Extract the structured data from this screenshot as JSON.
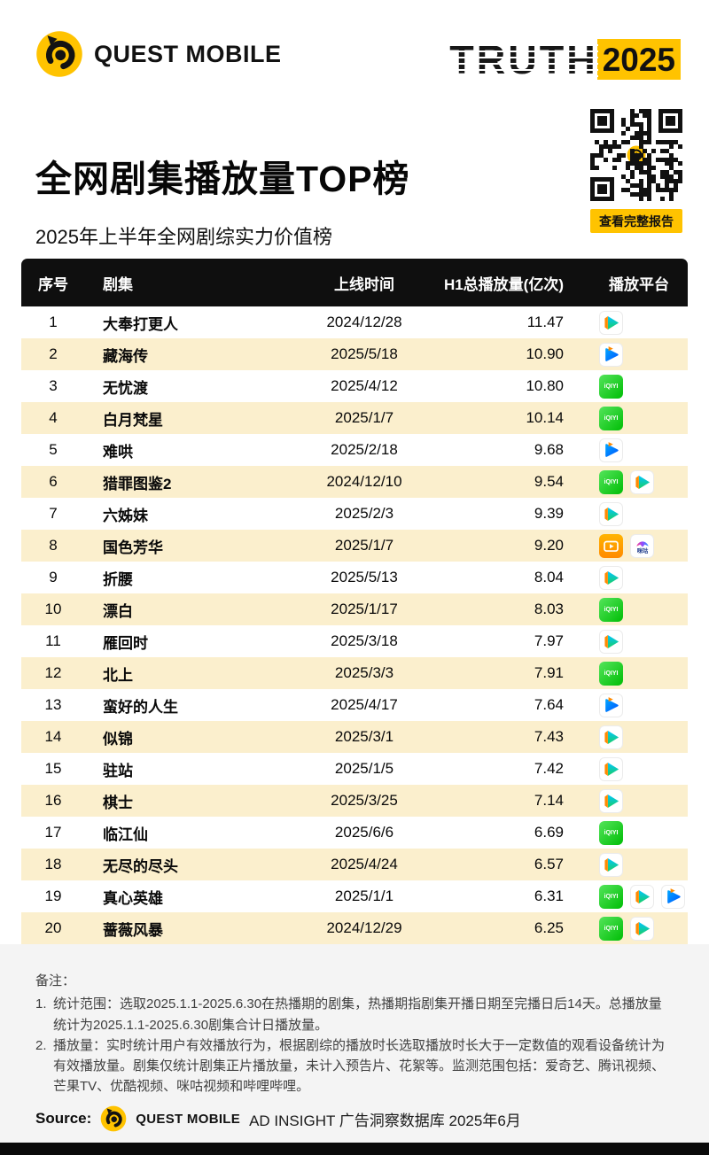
{
  "brand": {
    "name": "QUEST MOBILE",
    "truth": "TRUTH",
    "truth_year": "2025"
  },
  "header": {
    "title": "全网剧集播放量TOP榜",
    "subtitle": "2025年上半年全网剧综实力价值榜",
    "qr_button_label": "查看完整报告"
  },
  "table": {
    "columns": [
      "序号",
      "剧集",
      "上线时间",
      "H1总播放量(亿次)",
      "播放平台"
    ],
    "platform_labels": {
      "iqiyi": "iQIYI",
      "migu-video": "咪咕"
    },
    "rows": [
      {
        "rank": "1",
        "title": "大奉打更人",
        "date": "2024/12/28",
        "plays": "11.47",
        "platforms": [
          "tencent-video"
        ]
      },
      {
        "rank": "2",
        "title": "藏海传",
        "date": "2025/5/18",
        "plays": "10.90",
        "platforms": [
          "youku"
        ]
      },
      {
        "rank": "3",
        "title": "无忧渡",
        "date": "2025/4/12",
        "plays": "10.80",
        "platforms": [
          "iqiyi"
        ]
      },
      {
        "rank": "4",
        "title": "白月梵星",
        "date": "2025/1/7",
        "plays": "10.14",
        "platforms": [
          "iqiyi"
        ]
      },
      {
        "rank": "5",
        "title": "难哄",
        "date": "2025/2/18",
        "plays": "9.68",
        "platforms": [
          "youku"
        ]
      },
      {
        "rank": "6",
        "title": "猎罪图鉴2",
        "date": "2024/12/10",
        "plays": "9.54",
        "platforms": [
          "iqiyi",
          "tencent-video"
        ]
      },
      {
        "rank": "7",
        "title": "六姊妹",
        "date": "2025/2/3",
        "plays": "9.39",
        "platforms": [
          "tencent-video"
        ]
      },
      {
        "rank": "8",
        "title": "国色芳华",
        "date": "2025/1/7",
        "plays": "9.20",
        "platforms": [
          "mango-tv",
          "migu-video"
        ]
      },
      {
        "rank": "9",
        "title": "折腰",
        "date": "2025/5/13",
        "plays": "8.04",
        "platforms": [
          "tencent-video"
        ]
      },
      {
        "rank": "10",
        "title": "漂白",
        "date": "2025/1/17",
        "plays": "8.03",
        "platforms": [
          "iqiyi"
        ]
      },
      {
        "rank": "11",
        "title": "雁回时",
        "date": "2025/3/18",
        "plays": "7.97",
        "platforms": [
          "tencent-video"
        ]
      },
      {
        "rank": "12",
        "title": "北上",
        "date": "2025/3/3",
        "plays": "7.91",
        "platforms": [
          "iqiyi"
        ]
      },
      {
        "rank": "13",
        "title": "蛮好的人生",
        "date": "2025/4/17",
        "plays": "7.64",
        "platforms": [
          "youku"
        ]
      },
      {
        "rank": "14",
        "title": "似锦",
        "date": "2025/3/1",
        "plays": "7.43",
        "platforms": [
          "tencent-video"
        ]
      },
      {
        "rank": "15",
        "title": "驻站",
        "date": "2025/1/5",
        "plays": "7.42",
        "platforms": [
          "tencent-video"
        ]
      },
      {
        "rank": "16",
        "title": "棋士",
        "date": "2025/3/25",
        "plays": "7.14",
        "platforms": [
          "tencent-video"
        ]
      },
      {
        "rank": "17",
        "title": "临江仙",
        "date": "2025/6/6",
        "plays": "6.69",
        "platforms": [
          "iqiyi"
        ]
      },
      {
        "rank": "18",
        "title": "无尽的尽头",
        "date": "2025/4/24",
        "plays": "6.57",
        "platforms": [
          "tencent-video"
        ]
      },
      {
        "rank": "19",
        "title": "真心英雄",
        "date": "2025/1/1",
        "plays": "6.31",
        "platforms": [
          "iqiyi",
          "tencent-video",
          "youku"
        ]
      },
      {
        "rank": "20",
        "title": "蔷薇风暴",
        "date": "2024/12/29",
        "plays": "6.25",
        "platforms": [
          "iqiyi",
          "tencent-video"
        ]
      }
    ]
  },
  "chart_data": {
    "type": "table",
    "title": "全网剧集播放量TOP榜",
    "subtitle": "2025年上半年全网剧综实力价值榜",
    "columns": [
      "序号",
      "剧集",
      "上线时间",
      "H1总播放量(亿次)",
      "播放平台"
    ],
    "rows": [
      [
        "1",
        "大奉打更人",
        "2024/12/28",
        11.47,
        [
          "腾讯视频"
        ]
      ],
      [
        "2",
        "藏海传",
        "2025/5/18",
        10.9,
        [
          "优酷视频"
        ]
      ],
      [
        "3",
        "无忧渡",
        "2025/4/12",
        10.8,
        [
          "爱奇艺"
        ]
      ],
      [
        "4",
        "白月梵星",
        "2025/1/7",
        10.14,
        [
          "爱奇艺"
        ]
      ],
      [
        "5",
        "难哄",
        "2025/2/18",
        9.68,
        [
          "优酷视频"
        ]
      ],
      [
        "6",
        "猎罪图鉴2",
        "2024/12/10",
        9.54,
        [
          "爱奇艺",
          "腾讯视频"
        ]
      ],
      [
        "7",
        "六姊妹",
        "2025/2/3",
        9.39,
        [
          "腾讯视频"
        ]
      ],
      [
        "8",
        "国色芳华",
        "2025/1/7",
        9.2,
        [
          "芒果TV",
          "咪咕视频"
        ]
      ],
      [
        "9",
        "折腰",
        "2025/5/13",
        8.04,
        [
          "腾讯视频"
        ]
      ],
      [
        "10",
        "漂白",
        "2025/1/17",
        8.03,
        [
          "爱奇艺"
        ]
      ],
      [
        "11",
        "雁回时",
        "2025/3/18",
        7.97,
        [
          "腾讯视频"
        ]
      ],
      [
        "12",
        "北上",
        "2025/3/3",
        7.91,
        [
          "爱奇艺"
        ]
      ],
      [
        "13",
        "蛮好的人生",
        "2025/4/17",
        7.64,
        [
          "优酷视频"
        ]
      ],
      [
        "14",
        "似锦",
        "2025/3/1",
        7.43,
        [
          "腾讯视频"
        ]
      ],
      [
        "15",
        "驻站",
        "2025/1/5",
        7.42,
        [
          "腾讯视频"
        ]
      ],
      [
        "16",
        "棋士",
        "2025/3/25",
        7.14,
        [
          "腾讯视频"
        ]
      ],
      [
        "17",
        "临江仙",
        "2025/6/6",
        6.69,
        [
          "爱奇艺"
        ]
      ],
      [
        "18",
        "无尽的尽头",
        "2025/4/24",
        6.57,
        [
          "腾讯视频"
        ]
      ],
      [
        "19",
        "真心英雄",
        "2025/1/1",
        6.31,
        [
          "爱奇艺",
          "腾讯视频",
          "优酷视频"
        ]
      ],
      [
        "20",
        "蔷薇风暴",
        "2024/12/29",
        6.25,
        [
          "爱奇艺",
          "腾讯视频"
        ]
      ]
    ]
  },
  "notes": {
    "label": "备注：",
    "items": [
      {
        "num": "1.",
        "text": "统计范围：选取2025.1.1-2025.6.30在热播期的剧集，热播期指剧集开播日期至完播日后14天。总播放量统计为2025.1.1-2025.6.30剧集合计日播放量。"
      },
      {
        "num": "2.",
        "text": "播放量：实时统计用户有效播放行为，根据剧综的播放时长选取播放时长大于一定数值的观看设备统计为有效播放量。剧集仅统计剧集正片播放量，未计入预告片、花絮等。监测范围包括：爱奇艺、腾讯视频、芒果TV、优酷视频、咪咕视频和哔哩哔哩。"
      }
    ]
  },
  "source": {
    "label": "Source:",
    "brand": "QUEST MOBILE",
    "text": "AD INSIGHT 广告洞察数据库 2025年6月"
  },
  "colors": {
    "accent": "#FFC300",
    "row_alt": "#FBEFCD",
    "table_header_bg": "#0F0F0F",
    "footer_bg": "#F4F4F4"
  }
}
